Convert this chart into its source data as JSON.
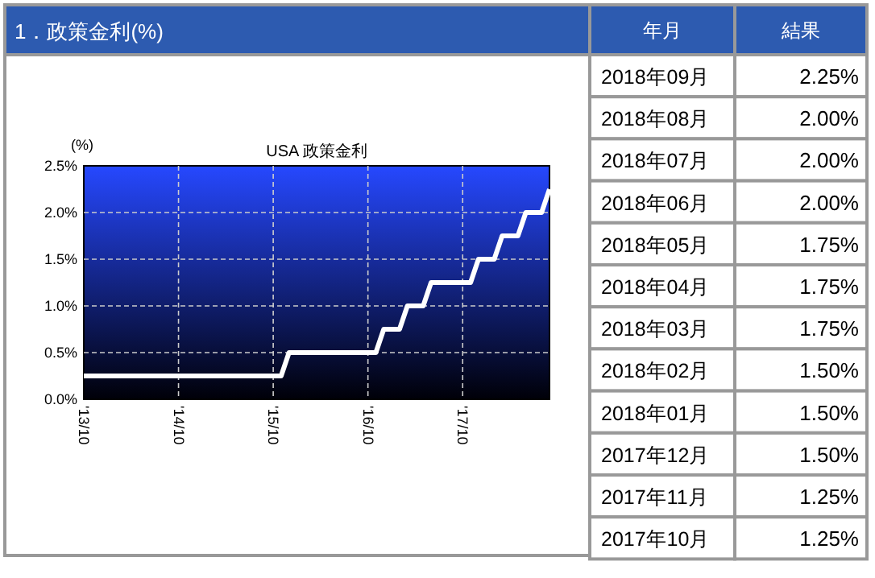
{
  "chart_data": [
    {
      "type": "line",
      "annotations": [
        "1．政策金利(%)"
      ],
      "title": "USA 政策金利",
      "ylabel": "(%)",
      "x": [
        "2013-10",
        "2013-11",
        "2013-12",
        "2014-01",
        "2014-02",
        "2014-03",
        "2014-04",
        "2014-05",
        "2014-06",
        "2014-07",
        "2014-08",
        "2014-09",
        "2014-10",
        "2014-11",
        "2014-12",
        "2015-01",
        "2015-02",
        "2015-03",
        "2015-04",
        "2015-05",
        "2015-06",
        "2015-07",
        "2015-08",
        "2015-09",
        "2015-10",
        "2015-11",
        "2015-12",
        "2016-01",
        "2016-02",
        "2016-03",
        "2016-04",
        "2016-05",
        "2016-06",
        "2016-07",
        "2016-08",
        "2016-09",
        "2016-10",
        "2016-11",
        "2016-12",
        "2017-01",
        "2017-02",
        "2017-03",
        "2017-04",
        "2017-05",
        "2017-06",
        "2017-07",
        "2017-08",
        "2017-09",
        "2017-10",
        "2017-11",
        "2017-12",
        "2018-01",
        "2018-02",
        "2018-03",
        "2018-04",
        "2018-05",
        "2018-06",
        "2018-07",
        "2018-08",
        "2018-09"
      ],
      "series": [
        {
          "color": "#ffffff",
          "values": [
            0.25,
            0.25,
            0.25,
            0.25,
            0.25,
            0.25,
            0.25,
            0.25,
            0.25,
            0.25,
            0.25,
            0.25,
            0.25,
            0.25,
            0.25,
            0.25,
            0.25,
            0.25,
            0.25,
            0.25,
            0.25,
            0.25,
            0.25,
            0.25,
            0.25,
            0.25,
            0.5,
            0.5,
            0.5,
            0.5,
            0.5,
            0.5,
            0.5,
            0.5,
            0.5,
            0.5,
            0.5,
            0.5,
            0.75,
            0.75,
            0.75,
            1.0,
            1.0,
            1.0,
            1.25,
            1.25,
            1.25,
            1.25,
            1.25,
            1.25,
            1.5,
            1.5,
            1.5,
            1.75,
            1.75,
            1.75,
            2.0,
            2.0,
            2.0,
            2.25
          ]
        }
      ],
      "xlim": [
        "2013-10",
        "2018-09"
      ],
      "xticks": [
        {
          "value": "2013-10",
          "label": "'13/10"
        },
        {
          "value": "2014-10",
          "label": "'14/10"
        },
        {
          "value": "2015-10",
          "label": "'15/10"
        },
        {
          "value": "2016-10",
          "label": "'16/10"
        },
        {
          "value": "2017-10",
          "label": "'17/10"
        }
      ],
      "ylim": [
        0,
        2.5
      ],
      "yticks": [
        {
          "value": 0,
          "label": "0.0%"
        },
        {
          "value": 0.5,
          "label": "0.5%"
        },
        {
          "value": 1,
          "label": "1.0%"
        },
        {
          "value": 1.5,
          "label": "1.5%"
        },
        {
          "value": 2,
          "label": "2.0%"
        },
        {
          "value": 2.5,
          "label": "2.5%"
        }
      ],
      "grid": true
    },
    {
      "type": "other",
      "xlabel": "年月",
      "ylabel": "結果",
      "categories": [
        "2018年09月",
        "2018年08月",
        "2018年07月",
        "2018年06月",
        "2018年05月",
        "2018年04月",
        "2018年03月",
        "2018年02月",
        "2018年01月",
        "2017年12月",
        "2017年11月",
        "2017年10月"
      ],
      "values": [
        2.25,
        2.0,
        2.0,
        2.0,
        1.75,
        1.75,
        1.75,
        1.5,
        1.5,
        1.5,
        1.25,
        1.25
      ],
      "value_labels": [
        "2.25%",
        "2.00%",
        "2.00%",
        "2.00%",
        "1.75%",
        "1.75%",
        "1.75%",
        "1.50%",
        "1.50%",
        "1.50%",
        "1.25%",
        "1.25%"
      ]
    }
  ]
}
